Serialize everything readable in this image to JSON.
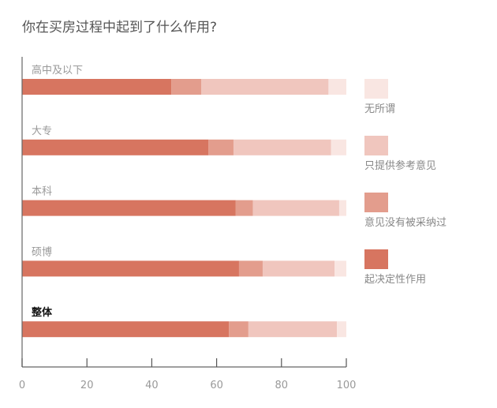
{
  "chart_data": {
    "type": "bar",
    "orientation": "horizontal",
    "stacked": true,
    "title": "你在买房过程中起到了什么作用?",
    "xlabel": "",
    "ylabel": "",
    "xlim": [
      0,
      100
    ],
    "xticks": [
      "0",
      "20",
      "40",
      "60",
      "80",
      "100"
    ],
    "categories": [
      "高中及以下",
      "大专",
      "本科",
      "硕博",
      "整体"
    ],
    "highlight_category": "整体",
    "series": [
      {
        "name": "起决定性作用",
        "color": "#d77560",
        "values": [
          46.0,
          57.5,
          65.9,
          66.9,
          63.8
        ]
      },
      {
        "name": "意见没有被采纳过",
        "color": "#e39d8d",
        "values": [
          9.3,
          7.7,
          5.3,
          7.3,
          6.0
        ]
      },
      {
        "name": "只提供参考意见",
        "color": "#f0c6be",
        "values": [
          39.2,
          30.1,
          26.6,
          22.2,
          27.3
        ]
      },
      {
        "name": "无所谓",
        "color": "#f9e6e2",
        "values": [
          5.5,
          4.7,
          2.2,
          3.6,
          2.9
        ]
      }
    ],
    "legend_order": [
      "无所谓",
      "只提供参考意见",
      "意见没有被采纳过",
      "起决定性作用"
    ],
    "legend_position": "right",
    "grid": false
  }
}
